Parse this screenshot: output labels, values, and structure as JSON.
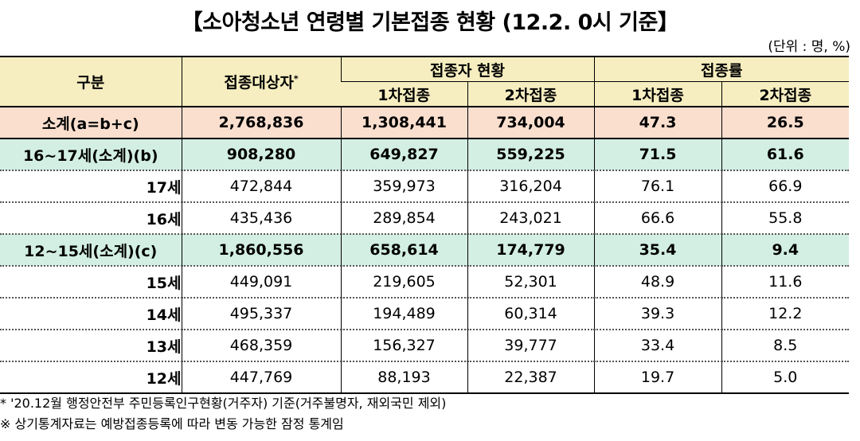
{
  "title": "【소아청소년 연령별 기본접종 현황 (12.2. 0시 기준】",
  "unit": "(단위 : 명, %)",
  "header": {
    "category": "구분",
    "target": "접종대상자",
    "target_mark": "*",
    "status": "접종자 현황",
    "rate": "접종률",
    "first": "1차접종",
    "second": "2차접종"
  },
  "rows": [
    {
      "label": "소계(a=b+c)",
      "target": "2,768,836",
      "first": "1,308,441",
      "second": "734,004",
      "rate1": "47.3",
      "rate2": "26.5"
    },
    {
      "label": "16~17세(소계)(b)",
      "target": "908,280",
      "first": "649,827",
      "second": "559,225",
      "rate1": "71.5",
      "rate2": "61.6"
    },
    {
      "label": "17세",
      "target": "472,844",
      "first": "359,973",
      "second": "316,204",
      "rate1": "76.1",
      "rate2": "66.9"
    },
    {
      "label": "16세",
      "target": "435,436",
      "first": "289,854",
      "second": "243,021",
      "rate1": "66.6",
      "rate2": "55.8"
    },
    {
      "label": "12~15세(소계)(c)",
      "target": "1,860,556",
      "first": "658,614",
      "second": "174,779",
      "rate1": "35.4",
      "rate2": "9.4"
    },
    {
      "label": "15세",
      "target": "449,091",
      "first": "219,605",
      "second": "52,301",
      "rate1": "48.9",
      "rate2": "11.6"
    },
    {
      "label": "14세",
      "target": "495,337",
      "first": "194,489",
      "second": "60,314",
      "rate1": "39.3",
      "rate2": "12.2"
    },
    {
      "label": "13세",
      "target": "468,359",
      "first": "156,327",
      "second": "39,777",
      "rate1": "33.4",
      "rate2": "8.5"
    },
    {
      "label": "12세",
      "target": "447,769",
      "first": "88,193",
      "second": "22,387",
      "rate1": "19.7",
      "rate2": "5.0"
    }
  ],
  "notes": [
    "* '20.12월 행정안전부 주민등록인구현황(거주자) 기준(거주불명자, 재외국민 제외)",
    "※ 상기통계자료는 예방접종등록에 따라 변동 가능한 잠정 통계임"
  ]
}
